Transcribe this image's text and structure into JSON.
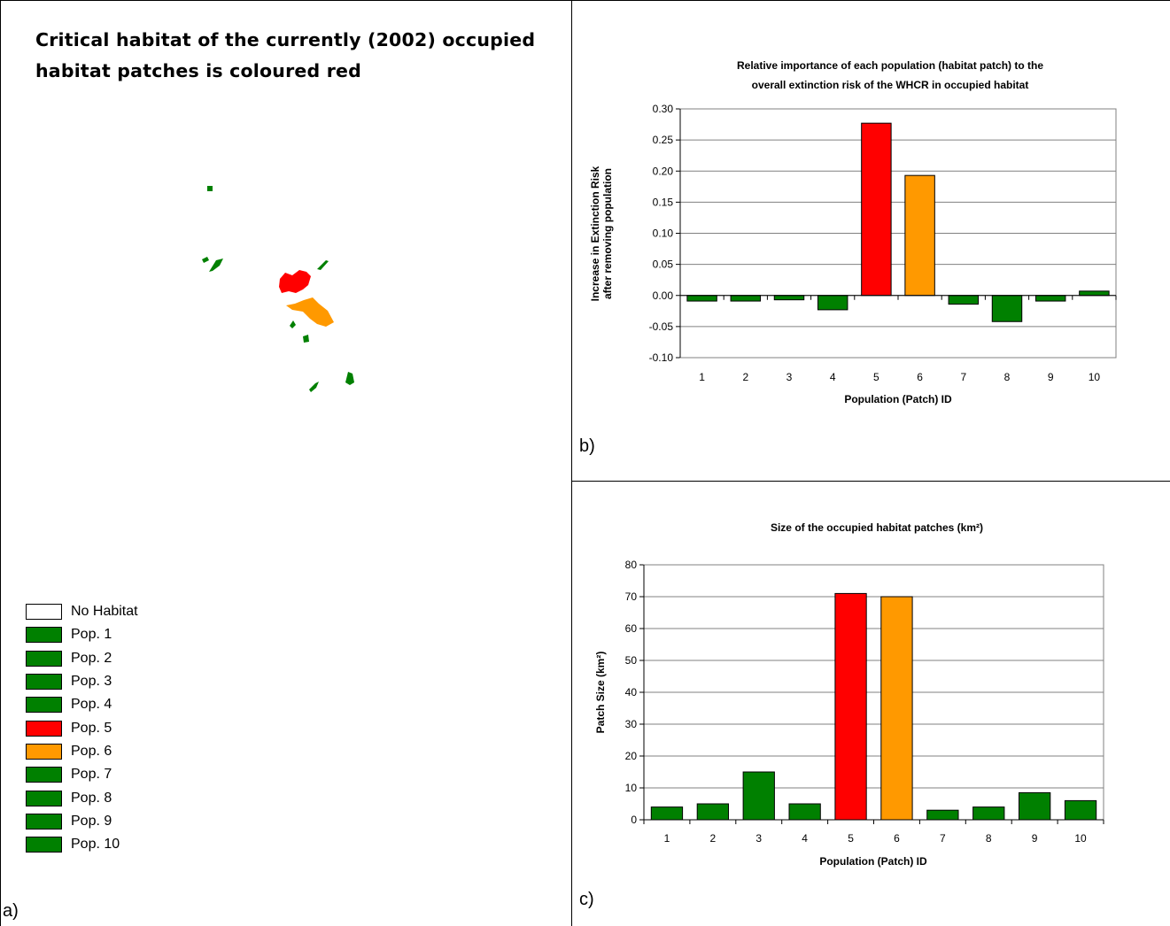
{
  "panel_a": {
    "title_line1": "Critical habitat of the currently (2002) occupied",
    "title_line2": "habitat patches is coloured red",
    "letter": "a)",
    "legend": [
      {
        "label": "No Habitat",
        "color": "#ffffff"
      },
      {
        "label": "Pop. 1",
        "color": "#008000"
      },
      {
        "label": "Pop. 2",
        "color": "#008000"
      },
      {
        "label": "Pop. 3",
        "color": "#008000"
      },
      {
        "label": "Pop. 4",
        "color": "#008000"
      },
      {
        "label": "Pop. 5",
        "color": "#ff0000"
      },
      {
        "label": "Pop. 6",
        "color": "#ff9900"
      },
      {
        "label": "Pop. 7",
        "color": "#008000"
      },
      {
        "label": "Pop. 8",
        "color": "#008000"
      },
      {
        "label": "Pop. 9",
        "color": "#008000"
      },
      {
        "label": "Pop. 10",
        "color": "#008000"
      }
    ]
  },
  "panel_b": {
    "letter": "b)"
  },
  "panel_c": {
    "letter": "c)"
  },
  "chart_data": [
    {
      "type": "bar",
      "title_line1": "Relative importance of each population (habitat patch) to the",
      "title_line2": "overall extinction risk of the WHCR  in occupied habitat",
      "xlabel": "Population (Patch) ID",
      "ylabel_line1": "Increase in Extinction Risk",
      "ylabel_line2": "after removing population",
      "categories": [
        "1",
        "2",
        "3",
        "4",
        "5",
        "6",
        "7",
        "8",
        "9",
        "10"
      ],
      "values": [
        -0.009,
        -0.009,
        -0.007,
        -0.023,
        0.277,
        0.193,
        -0.014,
        -0.042,
        -0.009,
        0.007
      ],
      "colors": [
        "#008000",
        "#008000",
        "#008000",
        "#008000",
        "#ff0000",
        "#ff9900",
        "#008000",
        "#008000",
        "#008000",
        "#008000"
      ],
      "ylim": [
        -0.1,
        0.3
      ],
      "yticks": [
        "0.30",
        "0.25",
        "0.20",
        "0.15",
        "0.10",
        "0.05",
        "0.00",
        "-0.05",
        "-0.10"
      ],
      "grid": true
    },
    {
      "type": "bar",
      "title": "Size of the occupied habitat patches (km²)",
      "xlabel": "Population (Patch) ID",
      "ylabel": "Patch Size (km²)",
      "categories": [
        "1",
        "2",
        "3",
        "4",
        "5",
        "6",
        "7",
        "8",
        "9",
        "10"
      ],
      "values": [
        4,
        5,
        15,
        5,
        71,
        70,
        3,
        4,
        8.5,
        6
      ],
      "colors": [
        "#008000",
        "#008000",
        "#008000",
        "#008000",
        "#ff0000",
        "#ff9900",
        "#008000",
        "#008000",
        "#008000",
        "#008000"
      ],
      "ylim": [
        0,
        80
      ],
      "yticks": [
        "80",
        "70",
        "60",
        "50",
        "40",
        "30",
        "20",
        "10",
        "0"
      ],
      "grid": true
    }
  ]
}
